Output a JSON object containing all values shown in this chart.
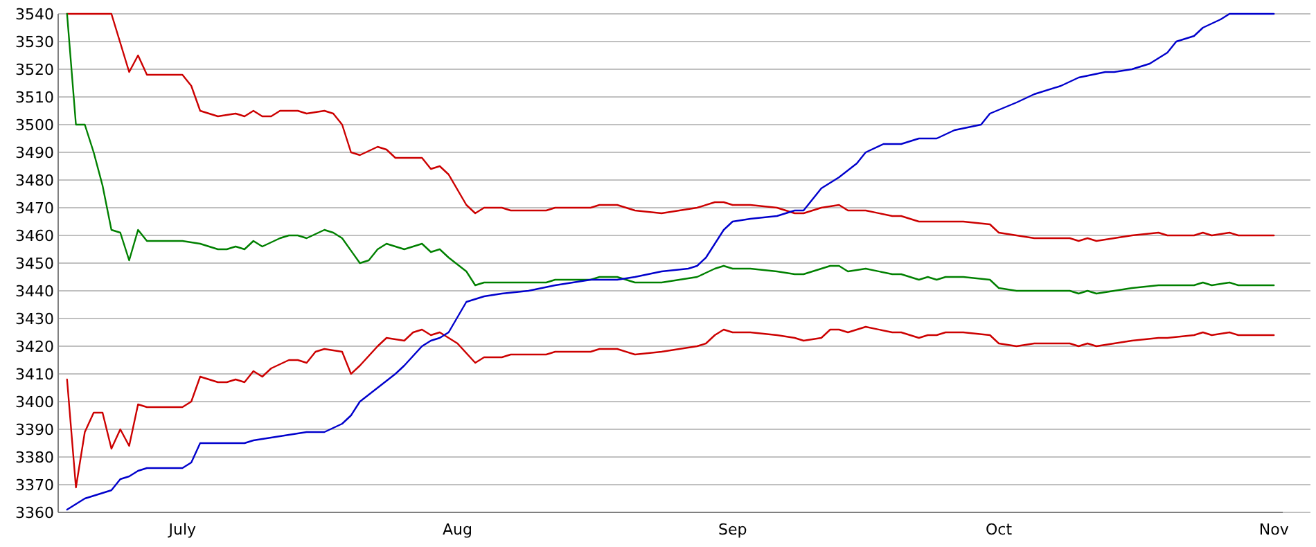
{
  "chart_data": {
    "type": "line",
    "ylim": [
      3360,
      3540
    ],
    "yticks": [
      3360,
      3370,
      3380,
      3390,
      3400,
      3410,
      3420,
      3430,
      3440,
      3450,
      3460,
      3470,
      3480,
      3490,
      3500,
      3510,
      3520,
      3530,
      3540
    ],
    "xlim": [
      "--06-17",
      "--11-02"
    ],
    "xticks": [
      {
        "value": "--07-01",
        "label": "July"
      },
      {
        "value": "--08-01",
        "label": "Aug"
      },
      {
        "value": "--09-01",
        "label": "Sep"
      },
      {
        "value": "--10-01",
        "label": "Oct"
      },
      {
        "value": "--11-01",
        "label": "Nov"
      }
    ],
    "grid": "y",
    "series": [
      {
        "color": "#cc0000",
        "x": [
          "--06-18",
          "--06-23",
          "--06-25",
          "--06-26",
          "--06-27",
          "--07-01",
          "--07-02",
          "--07-03",
          "--07-05",
          "--07-07",
          "--07-08",
          "--07-09",
          "--07-10",
          "--07-11",
          "--07-12",
          "--07-14",
          "--07-15",
          "--07-17",
          "--07-18",
          "--07-19",
          "--07-20",
          "--07-21",
          "--07-23",
          "--07-24",
          "--07-25",
          "--07-28",
          "--07-29",
          "--07-30",
          "--07-31",
          "--08-02",
          "--08-03",
          "--08-04",
          "--08-06",
          "--08-07",
          "--08-11",
          "--08-12",
          "--08-16",
          "--08-17",
          "--08-19",
          "--08-21",
          "--08-24",
          "--08-26",
          "--08-28",
          "--08-30",
          "--08-31",
          "--09-01",
          "--09-03",
          "--09-06",
          "--09-08",
          "--09-09",
          "--09-11",
          "--09-13",
          "--09-14",
          "--09-16",
          "--09-19",
          "--09-20",
          "--09-22",
          "--09-24",
          "--09-27",
          "--09-30",
          "--10-01",
          "--10-03",
          "--10-05",
          "--10-09",
          "--10-10",
          "--10-11",
          "--10-12",
          "--10-14",
          "--10-16",
          "--10-19",
          "--10-20",
          "--10-23",
          "--10-24",
          "--10-25",
          "--10-27",
          "--10-28",
          "--11-01"
        ],
        "values": [
          3540,
          3540,
          3519,
          3525,
          3518,
          3518,
          3514,
          3505,
          3503,
          3504,
          3503,
          3505,
          3503,
          3503,
          3505,
          3505,
          3504,
          3505,
          3504,
          3500,
          3490,
          3489,
          3492,
          3491,
          3488,
          3488,
          3484,
          3485,
          3482,
          3471,
          3468,
          3470,
          3470,
          3469,
          3469,
          3470,
          3470,
          3471,
          3471,
          3469,
          3468,
          3469,
          3470,
          3472,
          3472,
          3471,
          3471,
          3470,
          3468,
          3468,
          3470,
          3471,
          3469,
          3469,
          3467,
          3467,
          3465,
          3465,
          3465,
          3464,
          3461,
          3460,
          3459,
          3459,
          3458,
          3459,
          3458,
          3459,
          3460,
          3461,
          3460,
          3460,
          3461,
          3460,
          3461,
          3460,
          3460
        ]
      },
      {
        "color": "#008000",
        "x": [
          "--06-18",
          "--06-19",
          "--06-20",
          "--06-21",
          "--06-22",
          "--06-23",
          "--06-24",
          "--06-25",
          "--06-26",
          "--06-27",
          "--07-01",
          "--07-03",
          "--07-05",
          "--07-06",
          "--07-07",
          "--07-08",
          "--07-09",
          "--07-10",
          "--07-12",
          "--07-13",
          "--07-14",
          "--07-15",
          "--07-17",
          "--07-18",
          "--07-19",
          "--07-21",
          "--07-22",
          "--07-23",
          "--07-24",
          "--07-26",
          "--07-27",
          "--07-28",
          "--07-29",
          "--07-30",
          "--07-31",
          "--08-02",
          "--08-03",
          "--08-04",
          "--08-11",
          "--08-12",
          "--08-16",
          "--08-17",
          "--08-19",
          "--08-21",
          "--08-24",
          "--08-26",
          "--08-28",
          "--08-30",
          "--08-31",
          "--09-01",
          "--09-03",
          "--09-06",
          "--09-08",
          "--09-09",
          "--09-12",
          "--09-13",
          "--09-14",
          "--09-16",
          "--09-19",
          "--09-20",
          "--09-22",
          "--09-23",
          "--09-24",
          "--09-25",
          "--09-27",
          "--09-30",
          "--10-01",
          "--10-03",
          "--10-09",
          "--10-10",
          "--10-11",
          "--10-12",
          "--10-14",
          "--10-16",
          "--10-19",
          "--10-23",
          "--10-24",
          "--10-25",
          "--10-27",
          "--10-28",
          "--11-01"
        ],
        "values": [
          3540,
          3500,
          3500,
          3490,
          3478,
          3462,
          3461,
          3451,
          3462,
          3458,
          3458,
          3457,
          3455,
          3455,
          3456,
          3455,
          3458,
          3456,
          3459,
          3460,
          3460,
          3459,
          3462,
          3461,
          3459,
          3450,
          3451,
          3455,
          3457,
          3455,
          3456,
          3457,
          3454,
          3455,
          3452,
          3447,
          3442,
          3443,
          3443,
          3444,
          3444,
          3445,
          3445,
          3443,
          3443,
          3444,
          3445,
          3448,
          3449,
          3448,
          3448,
          3447,
          3446,
          3446,
          3449,
          3449,
          3447,
          3448,
          3446,
          3446,
          3444,
          3445,
          3444,
          3445,
          3445,
          3444,
          3441,
          3440,
          3440,
          3439,
          3440,
          3439,
          3440,
          3441,
          3442,
          3442,
          3443,
          3442,
          3443,
          3442,
          3442
        ]
      },
      {
        "color": "#cc0000",
        "x": [
          "--06-18",
          "--06-19",
          "--06-20",
          "--06-21",
          "--06-22",
          "--06-23",
          "--06-24",
          "--06-25",
          "--06-26",
          "--06-27",
          "--07-01",
          "--07-02",
          "--07-03",
          "--07-05",
          "--07-06",
          "--07-07",
          "--07-08",
          "--07-09",
          "--07-10",
          "--07-11",
          "--07-13",
          "--07-14",
          "--07-15",
          "--07-16",
          "--07-17",
          "--07-19",
          "--07-20",
          "--07-21",
          "--07-23",
          "--07-24",
          "--07-26",
          "--07-27",
          "--07-28",
          "--07-29",
          "--07-30",
          "--07-31",
          "--08-01",
          "--08-03",
          "--08-04",
          "--08-06",
          "--08-07",
          "--08-11",
          "--08-12",
          "--08-16",
          "--08-17",
          "--08-19",
          "--08-21",
          "--08-24",
          "--08-26",
          "--08-28",
          "--08-29",
          "--08-30",
          "--08-31",
          "--09-01",
          "--09-03",
          "--09-06",
          "--09-08",
          "--09-09",
          "--09-11",
          "--09-12",
          "--09-13",
          "--09-14",
          "--09-16",
          "--09-19",
          "--09-20",
          "--09-22",
          "--09-23",
          "--09-24",
          "--09-25",
          "--09-27",
          "--09-30",
          "--10-01",
          "--10-03",
          "--10-05",
          "--10-09",
          "--10-10",
          "--10-11",
          "--10-12",
          "--10-14",
          "--10-16",
          "--10-19",
          "--10-20",
          "--10-23",
          "--10-24",
          "--10-25",
          "--10-27",
          "--10-28",
          "--11-01"
        ],
        "values": [
          3408,
          3369,
          3389,
          3396,
          3396,
          3383,
          3390,
          3384,
          3399,
          3398,
          3398,
          3400,
          3409,
          3407,
          3407,
          3408,
          3407,
          3411,
          3409,
          3412,
          3415,
          3415,
          3414,
          3418,
          3419,
          3418,
          3410,
          3413,
          3420,
          3423,
          3422,
          3425,
          3426,
          3424,
          3425,
          3423,
          3421,
          3414,
          3416,
          3416,
          3417,
          3417,
          3418,
          3418,
          3419,
          3419,
          3417,
          3418,
          3419,
          3420,
          3421,
          3424,
          3426,
          3425,
          3425,
          3424,
          3423,
          3422,
          3423,
          3426,
          3426,
          3425,
          3427,
          3425,
          3425,
          3423,
          3424,
          3424,
          3425,
          3425,
          3424,
          3421,
          3420,
          3421,
          3421,
          3420,
          3421,
          3420,
          3421,
          3422,
          3423,
          3423,
          3424,
          3425,
          3424,
          3425,
          3424,
          3424
        ]
      },
      {
        "color": "#0000cc",
        "x": [
          "--06-18",
          "--06-19",
          "--06-20",
          "--06-21",
          "--06-23",
          "--06-24",
          "--06-25",
          "--06-26",
          "--06-27",
          "--07-01",
          "--07-02",
          "--07-03",
          "--07-08",
          "--07-09",
          "--07-11",
          "--07-13",
          "--07-15",
          "--07-17",
          "--07-19",
          "--07-20",
          "--07-21",
          "--07-23",
          "--07-25",
          "--07-26",
          "--07-28",
          "--07-29",
          "--07-30",
          "--07-31",
          "--08-02",
          "--08-04",
          "--08-06",
          "--08-09",
          "--08-12",
          "--08-16",
          "--08-19",
          "--08-21",
          "--08-24",
          "--08-27",
          "--08-28",
          "--08-29",
          "--08-30",
          "--08-31",
          "--09-01",
          "--09-03",
          "--09-06",
          "--09-08",
          "--09-09",
          "--09-11",
          "--09-13",
          "--09-15",
          "--09-16",
          "--09-18",
          "--09-20",
          "--09-22",
          "--09-24",
          "--09-26",
          "--09-29",
          "--09-30",
          "--10-03",
          "--10-05",
          "--10-08",
          "--10-10",
          "--10-13",
          "--10-14",
          "--10-16",
          "--10-18",
          "--10-20",
          "--10-21",
          "--10-23",
          "--10-24",
          "--10-26",
          "--10-27",
          "--11-01"
        ],
        "values": [
          3361,
          3363,
          3365,
          3366,
          3368,
          3372,
          3373,
          3375,
          3376,
          3376,
          3378,
          3385,
          3385,
          3386,
          3387,
          3388,
          3389,
          3389,
          3392,
          3395,
          3400,
          3405,
          3410,
          3413,
          3420,
          3422,
          3423,
          3425,
          3436,
          3438,
          3439,
          3440,
          3442,
          3444,
          3444,
          3445,
          3447,
          3448,
          3449,
          3452,
          3457,
          3462,
          3465,
          3466,
          3467,
          3469,
          3469,
          3477,
          3481,
          3486,
          3490,
          3493,
          3493,
          3495,
          3495,
          3498,
          3500,
          3504,
          3508,
          3511,
          3514,
          3517,
          3519,
          3519,
          3520,
          3522,
          3526,
          3530,
          3532,
          3535,
          3538,
          3540,
          3540
        ]
      }
    ]
  }
}
